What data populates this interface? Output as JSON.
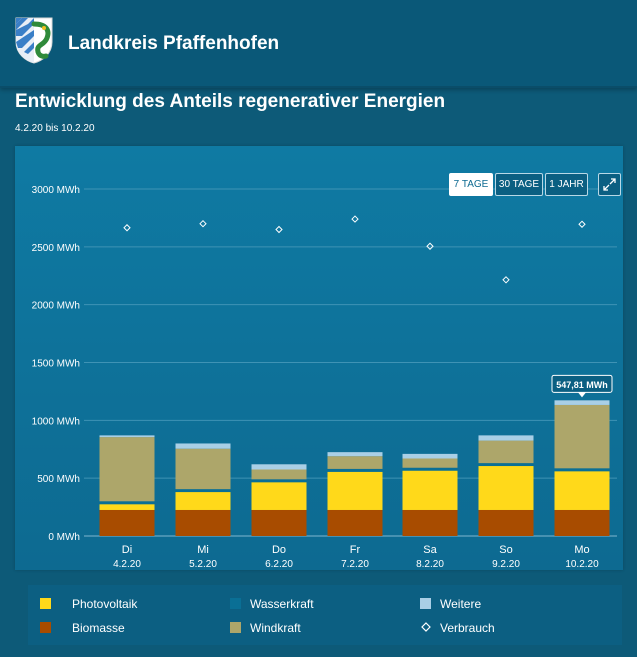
{
  "header": {
    "title": "Landkreis Pfaffenhofen"
  },
  "page": {
    "title": "Entwicklung des Anteils regenerativer Energien",
    "date_range": "4.2.20 bis 10.2.20"
  },
  "range_buttons": [
    {
      "label": "7 TAGE",
      "active": true
    },
    {
      "label": "30 TAGE",
      "active": false
    },
    {
      "label": "1 JAHR",
      "active": false
    }
  ],
  "tooltip": {
    "text": "547,81 MWh"
  },
  "legend": [
    {
      "label": "Photovoltaik",
      "color": "#ffd91a",
      "marker": "square"
    },
    {
      "label": "Wasserkraft",
      "color": "#0a6f95",
      "marker": "square"
    },
    {
      "label": "Weitere",
      "color": "#a9cfe6",
      "marker": "square"
    },
    {
      "label": "Biomasse",
      "color": "#a84c00",
      "marker": "square"
    },
    {
      "label": "Windkraft",
      "color": "#ada66a",
      "marker": "square"
    },
    {
      "label": "Verbrauch",
      "color": "#ffffff",
      "marker": "diamond"
    }
  ],
  "chart_data": {
    "type": "bar",
    "stacked": true,
    "y_unit": "MWh",
    "ylim": [
      0,
      3000
    ],
    "y_ticks": [
      {
        "value": 0,
        "label": "0 MWh"
      },
      {
        "value": 500,
        "label": "500 MWh"
      },
      {
        "value": 1000,
        "label": "1000 MWh"
      },
      {
        "value": 1500,
        "label": "1500 MWh"
      },
      {
        "value": 2000,
        "label": "2000 MWh"
      },
      {
        "value": 2500,
        "label": "2500 MWh"
      },
      {
        "value": 3000,
        "label": "3000 MWh"
      }
    ],
    "categories": [
      {
        "day": "Di",
        "date": "4.2.20"
      },
      {
        "day": "Mi",
        "date": "5.2.20"
      },
      {
        "day": "Do",
        "date": "6.2.20"
      },
      {
        "day": "Fr",
        "date": "7.2.20"
      },
      {
        "day": "Sa",
        "date": "8.2.20"
      },
      {
        "day": "So",
        "date": "9.2.20"
      },
      {
        "day": "Mo",
        "date": "10.2.20"
      }
    ],
    "series": [
      {
        "name": "Biomasse",
        "color": "#a84c00",
        "values": [
          225,
          225,
          225,
          225,
          225,
          225,
          225
        ]
      },
      {
        "name": "Photovoltaik",
        "color": "#ffd91a",
        "values": [
          50,
          155,
          240,
          330,
          340,
          380,
          335
        ]
      },
      {
        "name": "Wasserkraft",
        "color": "#0a6f95",
        "values": [
          25,
          25,
          25,
          25,
          25,
          25,
          25
        ]
      },
      {
        "name": "Windkraft",
        "color": "#ada66a",
        "values": [
          555,
          350,
          85,
          110,
          80,
          195,
          548
        ]
      },
      {
        "name": "Weitere",
        "color": "#a9cfe6",
        "values": [
          15,
          45,
          45,
          35,
          40,
          45,
          40
        ]
      }
    ],
    "consumption": {
      "name": "Verbrauch",
      "values": [
        2665,
        2700,
        2650,
        2740,
        2505,
        2215,
        2695
      ]
    },
    "tooltip_index": 6,
    "tooltip_series": "Windkraft"
  }
}
